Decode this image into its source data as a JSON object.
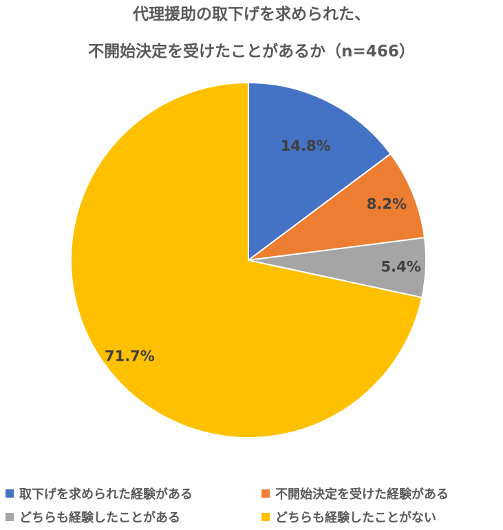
{
  "chart_data": {
    "type": "pie",
    "title_line1": "代理援助の取下げを求められた、",
    "title_line2": "不開始決定を受けたことがあるか（n=466）",
    "slices": [
      {
        "label": "取下げを求められた経験がある",
        "value": 14.8,
        "value_label": "14.8%",
        "color": "#4472C4"
      },
      {
        "label": "不開始決定を受けた経験がある",
        "value": 8.2,
        "value_label": "8.2%",
        "color": "#ED7D31"
      },
      {
        "label": "どちらも経験したことがある",
        "value": 5.4,
        "value_label": "5.4%",
        "color": "#A5A5A5"
      },
      {
        "label": "どちらも経験したことがない",
        "value": 71.7,
        "value_label": "71.7%",
        "color": "#FFC000"
      }
    ],
    "start_angle": "12 o'clock",
    "direction": "clockwise",
    "legend_position": "bottom"
  }
}
